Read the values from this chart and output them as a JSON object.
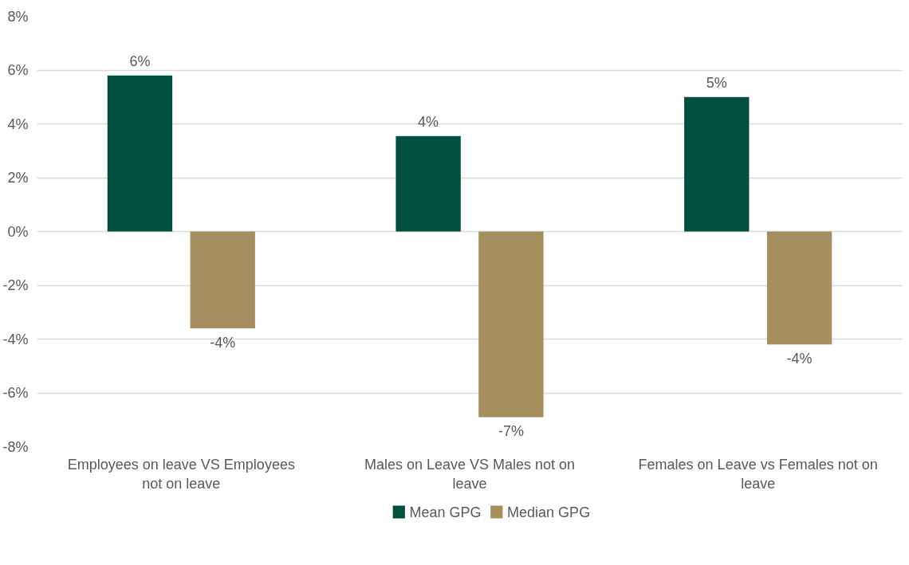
{
  "chart_data": {
    "type": "bar",
    "categories": [
      "Employees on leave VS Employees not on leave",
      "Males on Leave VS Males not on leave",
      "Females on Leave vs Females not on leave"
    ],
    "series": [
      {
        "name": "Mean GPG",
        "color": "#00503f",
        "values": [
          5.8,
          3.55,
          5.0
        ],
        "value_labels": [
          "6%",
          "4%",
          "5%"
        ]
      },
      {
        "name": "Median GPG",
        "color": "#a58f5e",
        "values": [
          -3.6,
          -6.9,
          -4.2
        ],
        "value_labels": [
          "-4%",
          "-7%",
          "-4%"
        ]
      }
    ],
    "ylim": [
      -8,
      8
    ],
    "yticks": [
      {
        "value": -8,
        "label": "-8%"
      },
      {
        "value": -6,
        "label": "-6%"
      },
      {
        "value": -4,
        "label": "-4%"
      },
      {
        "value": -2,
        "label": "-2%"
      },
      {
        "value": 0,
        "label": "0%"
      },
      {
        "value": 2,
        "label": "2%"
      },
      {
        "value": 4,
        "label": "4%"
      },
      {
        "value": 6,
        "label": "6%"
      },
      {
        "value": 8,
        "label": "8%"
      }
    ],
    "grid": "y",
    "legend": "bottom"
  }
}
